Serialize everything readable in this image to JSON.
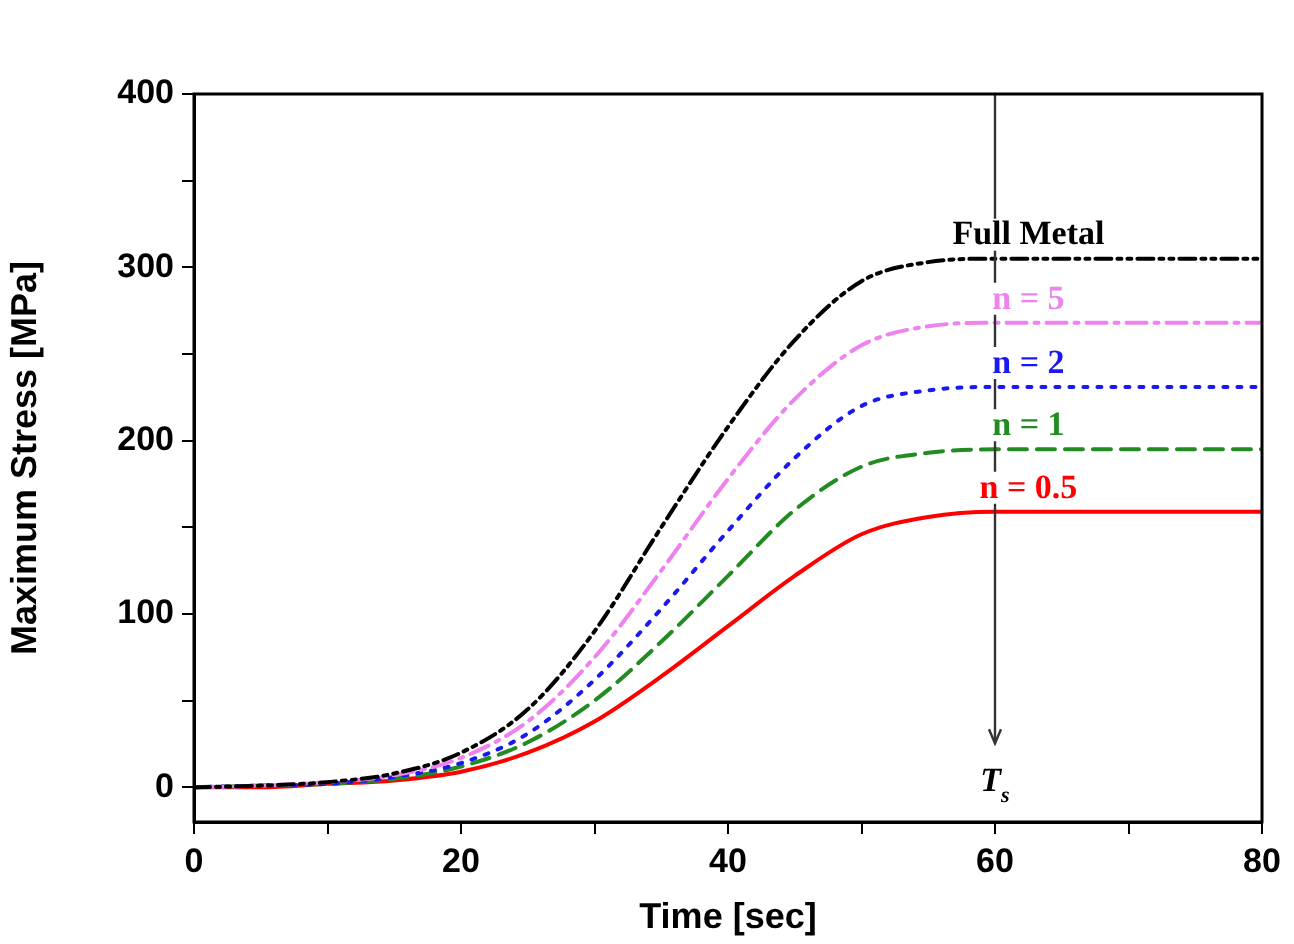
{
  "chart_data": {
    "type": "line",
    "xlabel": "Time [sec]",
    "ylabel": "Maximum Stress [MPa]",
    "x": [
      0,
      5,
      10,
      15,
      20,
      25,
      30,
      35,
      40,
      45,
      50,
      55,
      60,
      70,
      80
    ],
    "xlim": [
      0,
      80
    ],
    "xticks": [
      0,
      {
        "value": 10,
        "label": null
      },
      20,
      {
        "value": 30,
        "label": null
      },
      40,
      {
        "value": 50,
        "label": null
      },
      60,
      {
        "value": 70,
        "label": null
      },
      80
    ],
    "ylim": [
      -20,
      400
    ],
    "yticks": [
      0,
      {
        "value": 50,
        "label": null
      },
      100,
      {
        "value": 150,
        "label": null
      },
      200,
      {
        "value": 250,
        "label": null
      },
      300,
      {
        "value": 350,
        "label": null
      },
      400
    ],
    "grid": false,
    "legend": false,
    "marker": "none",
    "series": [
      {
        "name": "Full Metal",
        "color": "#000000",
        "line_style": "dashdotdot",
        "values": [
          0,
          1,
          3,
          8,
          20,
          45,
          90,
          150,
          208,
          258,
          292,
          303,
          305,
          305,
          305
        ]
      },
      {
        "name": "n = 5",
        "color": "#ee82ee",
        "line_style": "dashdot",
        "values": [
          0,
          1,
          3,
          7,
          17,
          38,
          75,
          125,
          178,
          224,
          255,
          266,
          268,
          268,
          268
        ]
      },
      {
        "name": "n = 2",
        "color": "#1a1aee",
        "line_style": "dotted",
        "values": [
          0,
          1,
          2,
          6,
          14,
          31,
          62,
          103,
          148,
          190,
          220,
          229,
          231,
          231,
          231
        ]
      },
      {
        "name": "n = 1",
        "color": "#228b22",
        "line_style": "dashed",
        "values": [
          0,
          1,
          2,
          5,
          12,
          26,
          50,
          84,
          122,
          160,
          185,
          193,
          195,
          195,
          195
        ]
      },
      {
        "name": "n = 0.5",
        "color": "#ff0000",
        "line_style": "solid",
        "values": [
          0,
          0,
          2,
          4,
          9,
          20,
          38,
          64,
          93,
          122,
          146,
          156,
          159,
          159,
          159
        ]
      }
    ],
    "ref_lines": [
      {
        "axis": "x",
        "value": 60,
        "label": "T$_{s}$",
        "color": "#333333"
      }
    ]
  }
}
